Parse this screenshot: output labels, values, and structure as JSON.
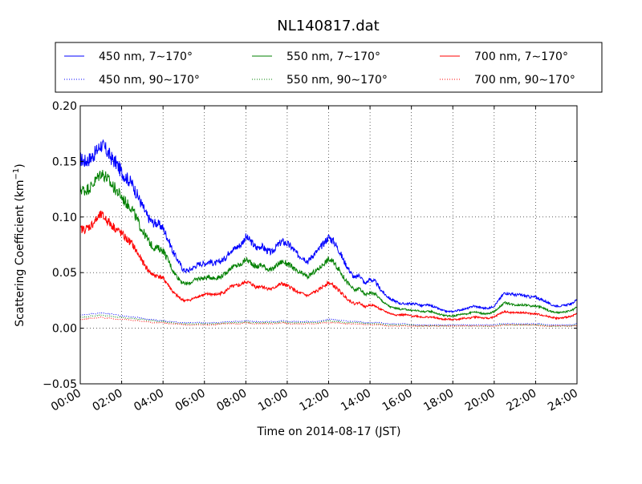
{
  "chart_data": {
    "type": "line",
    "title": "NL140817.dat",
    "xlabel": "Time on 2014-08-17 (JST)",
    "ylabel_main": "Scattering Coefficient (km",
    "ylabel_sup": "−1",
    "ylabel_end": ")",
    "x_ticks": [
      "00:00",
      "02:00",
      "04:00",
      "06:00",
      "08:00",
      "10:00",
      "12:00",
      "14:00",
      "16:00",
      "18:00",
      "20:00",
      "22:00",
      "24:00"
    ],
    "y_ticks": [
      "−0.05",
      "0.00",
      "0.05",
      "0.10",
      "0.15",
      "0.20"
    ],
    "xlim_hours": [
      0,
      24
    ],
    "ylim": [
      -0.05,
      0.2
    ],
    "grid": true,
    "legend_position": "above plot",
    "x_hours": [
      0,
      0.25,
      0.5,
      0.75,
      1,
      1.25,
      1.5,
      1.75,
      2,
      2.25,
      2.5,
      2.75,
      3,
      3.25,
      3.5,
      3.75,
      4,
      4.25,
      4.5,
      4.75,
      5,
      5.25,
      5.5,
      5.75,
      6,
      6.25,
      6.5,
      6.75,
      7,
      7.25,
      7.5,
      7.75,
      8,
      8.25,
      8.5,
      8.75,
      9,
      9.25,
      9.5,
      9.75,
      10,
      10.25,
      10.5,
      10.75,
      11,
      11.25,
      11.5,
      11.75,
      12,
      12.25,
      12.5,
      12.75,
      13,
      13.25,
      13.5,
      13.75,
      14,
      14.25,
      14.5,
      14.75,
      15,
      15.25,
      15.5,
      15.75,
      16,
      16.25,
      16.5,
      16.75,
      17,
      17.25,
      17.5,
      17.75,
      18,
      18.25,
      18.5,
      18.75,
      19,
      19.25,
      19.5,
      19.75,
      20,
      20.25,
      20.5,
      20.75,
      21,
      21.25,
      21.5,
      21.75,
      22,
      22.25,
      22.5,
      22.75,
      23,
      23.25,
      23.5,
      23.75,
      24
    ],
    "series": [
      {
        "name": "450 nm, 7∼170°",
        "color": "#0000ff",
        "style": "solid",
        "values": [
          0.152,
          0.15,
          0.153,
          0.158,
          0.165,
          0.16,
          0.153,
          0.148,
          0.14,
          0.135,
          0.13,
          0.12,
          0.11,
          0.1,
          0.095,
          0.094,
          0.09,
          0.08,
          0.068,
          0.06,
          0.052,
          0.052,
          0.055,
          0.058,
          0.058,
          0.06,
          0.058,
          0.06,
          0.063,
          0.07,
          0.072,
          0.075,
          0.082,
          0.078,
          0.072,
          0.074,
          0.07,
          0.068,
          0.074,
          0.078,
          0.076,
          0.072,
          0.066,
          0.064,
          0.06,
          0.066,
          0.07,
          0.076,
          0.082,
          0.078,
          0.07,
          0.06,
          0.052,
          0.045,
          0.048,
          0.04,
          0.044,
          0.042,
          0.035,
          0.03,
          0.026,
          0.024,
          0.022,
          0.022,
          0.022,
          0.022,
          0.02,
          0.021,
          0.02,
          0.018,
          0.016,
          0.015,
          0.015,
          0.016,
          0.017,
          0.018,
          0.02,
          0.019,
          0.018,
          0.018,
          0.02,
          0.026,
          0.032,
          0.031,
          0.03,
          0.03,
          0.029,
          0.028,
          0.028,
          0.026,
          0.024,
          0.021,
          0.02,
          0.02,
          0.021,
          0.022,
          0.026
        ]
      },
      {
        "name": "550 nm, 7∼170°",
        "color": "#008000",
        "style": "solid",
        "values": [
          0.125,
          0.124,
          0.127,
          0.133,
          0.14,
          0.136,
          0.129,
          0.124,
          0.118,
          0.112,
          0.108,
          0.097,
          0.088,
          0.08,
          0.073,
          0.072,
          0.07,
          0.061,
          0.051,
          0.045,
          0.04,
          0.04,
          0.043,
          0.045,
          0.045,
          0.046,
          0.045,
          0.046,
          0.049,
          0.054,
          0.056,
          0.057,
          0.062,
          0.059,
          0.055,
          0.057,
          0.054,
          0.052,
          0.057,
          0.06,
          0.058,
          0.055,
          0.05,
          0.049,
          0.046,
          0.05,
          0.053,
          0.058,
          0.062,
          0.059,
          0.053,
          0.045,
          0.039,
          0.034,
          0.036,
          0.03,
          0.032,
          0.031,
          0.026,
          0.022,
          0.019,
          0.018,
          0.017,
          0.017,
          0.016,
          0.016,
          0.015,
          0.015,
          0.015,
          0.013,
          0.012,
          0.011,
          0.011,
          0.012,
          0.013,
          0.013,
          0.015,
          0.014,
          0.013,
          0.013,
          0.015,
          0.019,
          0.023,
          0.022,
          0.021,
          0.021,
          0.021,
          0.02,
          0.02,
          0.019,
          0.017,
          0.015,
          0.014,
          0.014,
          0.015,
          0.016,
          0.019
        ]
      },
      {
        "name": "700 nm, 7∼170°",
        "color": "#ff0000",
        "style": "solid",
        "values": [
          0.089,
          0.089,
          0.092,
          0.097,
          0.102,
          0.098,
          0.093,
          0.089,
          0.085,
          0.08,
          0.076,
          0.068,
          0.06,
          0.053,
          0.048,
          0.047,
          0.045,
          0.039,
          0.032,
          0.028,
          0.025,
          0.025,
          0.027,
          0.029,
          0.03,
          0.031,
          0.03,
          0.031,
          0.033,
          0.037,
          0.038,
          0.039,
          0.042,
          0.04,
          0.037,
          0.038,
          0.036,
          0.035,
          0.038,
          0.04,
          0.038,
          0.036,
          0.032,
          0.031,
          0.029,
          0.032,
          0.034,
          0.038,
          0.041,
          0.038,
          0.034,
          0.029,
          0.025,
          0.022,
          0.023,
          0.019,
          0.021,
          0.02,
          0.017,
          0.015,
          0.013,
          0.012,
          0.012,
          0.012,
          0.011,
          0.011,
          0.01,
          0.01,
          0.01,
          0.009,
          0.008,
          0.008,
          0.008,
          0.008,
          0.009,
          0.009,
          0.01,
          0.01,
          0.009,
          0.009,
          0.01,
          0.013,
          0.015,
          0.014,
          0.014,
          0.014,
          0.014,
          0.013,
          0.013,
          0.012,
          0.011,
          0.01,
          0.009,
          0.009,
          0.01,
          0.011,
          0.013
        ]
      },
      {
        "name": "450 nm, 90∼170°",
        "color": "#0000ff",
        "style": "dotted",
        "values": [
          0.012,
          0.012,
          0.013,
          0.013,
          0.014,
          0.013,
          0.013,
          0.012,
          0.011,
          0.011,
          0.01,
          0.01,
          0.009,
          0.008,
          0.008,
          0.007,
          0.007,
          0.006,
          0.006,
          0.005,
          0.005,
          0.005,
          0.005,
          0.005,
          0.005,
          0.005,
          0.005,
          0.005,
          0.006,
          0.006,
          0.006,
          0.006,
          0.007,
          0.006,
          0.006,
          0.006,
          0.006,
          0.006,
          0.006,
          0.007,
          0.006,
          0.006,
          0.006,
          0.006,
          0.006,
          0.006,
          0.006,
          0.007,
          0.008,
          0.008,
          0.007,
          0.007,
          0.006,
          0.006,
          0.006,
          0.005,
          0.005,
          0.005,
          0.005,
          0.004,
          0.004,
          0.004,
          0.004,
          0.004,
          0.003,
          0.003,
          0.003,
          0.003,
          0.003,
          0.003,
          0.003,
          0.003,
          0.003,
          0.003,
          0.003,
          0.003,
          0.003,
          0.003,
          0.003,
          0.003,
          0.003,
          0.004,
          0.004,
          0.004,
          0.004,
          0.004,
          0.004,
          0.004,
          0.004,
          0.004,
          0.003,
          0.003,
          0.003,
          0.003,
          0.003,
          0.003,
          0.004
        ]
      },
      {
        "name": "550 nm, 90∼170°",
        "color": "#008000",
        "style": "dotted",
        "values": [
          0.01,
          0.01,
          0.011,
          0.011,
          0.012,
          0.011,
          0.011,
          0.01,
          0.01,
          0.009,
          0.009,
          0.008,
          0.008,
          0.007,
          0.007,
          0.006,
          0.006,
          0.005,
          0.005,
          0.004,
          0.004,
          0.004,
          0.004,
          0.004,
          0.004,
          0.004,
          0.004,
          0.004,
          0.005,
          0.005,
          0.005,
          0.005,
          0.006,
          0.005,
          0.005,
          0.005,
          0.005,
          0.005,
          0.005,
          0.006,
          0.005,
          0.005,
          0.005,
          0.005,
          0.005,
          0.005,
          0.005,
          0.006,
          0.007,
          0.006,
          0.006,
          0.005,
          0.005,
          0.005,
          0.005,
          0.004,
          0.004,
          0.004,
          0.004,
          0.003,
          0.003,
          0.003,
          0.003,
          0.003,
          0.003,
          0.002,
          0.002,
          0.002,
          0.002,
          0.002,
          0.002,
          0.002,
          0.002,
          0.002,
          0.002,
          0.002,
          0.002,
          0.002,
          0.002,
          0.002,
          0.002,
          0.003,
          0.003,
          0.003,
          0.003,
          0.003,
          0.003,
          0.003,
          0.003,
          0.003,
          0.002,
          0.002,
          0.002,
          0.002,
          0.002,
          0.002,
          0.003
        ]
      },
      {
        "name": "700 nm, 90∼170°",
        "color": "#ff0000",
        "style": "dotted",
        "values": [
          0.008,
          0.008,
          0.009,
          0.009,
          0.01,
          0.009,
          0.009,
          0.008,
          0.008,
          0.008,
          0.007,
          0.007,
          0.006,
          0.006,
          0.005,
          0.005,
          0.005,
          0.004,
          0.004,
          0.004,
          0.003,
          0.003,
          0.003,
          0.003,
          0.003,
          0.003,
          0.003,
          0.004,
          0.004,
          0.004,
          0.004,
          0.004,
          0.005,
          0.004,
          0.004,
          0.004,
          0.004,
          0.004,
          0.004,
          0.005,
          0.004,
          0.004,
          0.004,
          0.004,
          0.004,
          0.004,
          0.004,
          0.005,
          0.005,
          0.005,
          0.005,
          0.004,
          0.004,
          0.004,
          0.004,
          0.003,
          0.003,
          0.003,
          0.003,
          0.002,
          0.002,
          0.002,
          0.002,
          0.002,
          0.002,
          0.002,
          0.002,
          0.002,
          0.002,
          0.002,
          0.002,
          0.002,
          0.002,
          0.002,
          0.002,
          0.002,
          0.002,
          0.002,
          0.002,
          0.002,
          0.002,
          0.002,
          0.003,
          0.003,
          0.003,
          0.003,
          0.003,
          0.003,
          0.003,
          0.002,
          0.002,
          0.002,
          0.002,
          0.002,
          0.002,
          0.002,
          0.002
        ]
      }
    ]
  }
}
